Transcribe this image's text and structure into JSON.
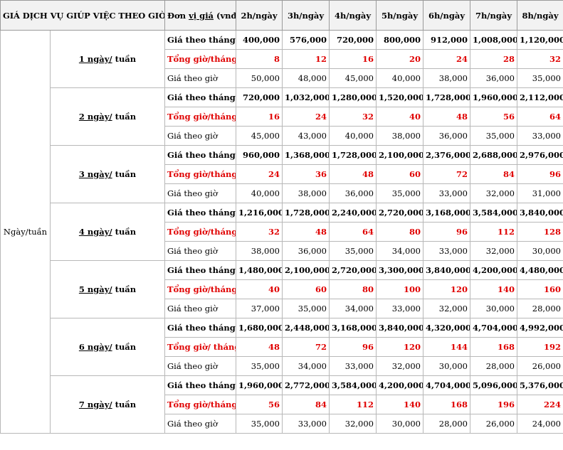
{
  "header": {
    "title": "GIÁ DỊCH VỤ GIÚP VIỆC THEO GIỜ",
    "unit_pre": "Đơn ",
    "unit_u": "vị giá",
    "unit_post": " (vnđ)",
    "cols": [
      "2h/ngày",
      "3h/ngày",
      "4h/ngày",
      "5h/ngày",
      "6h/ngày",
      "7h/ngày",
      "8h/ngày"
    ]
  },
  "group_label": "Ngày/tuần",
  "blocks": [
    {
      "days": "1 ngày/ tuần",
      "rows": [
        {
          "label": "Giá theo tháng",
          "values": [
            "400,000",
            "576,000",
            "720,000",
            "800,000",
            "912,000",
            "1,008,000",
            "1,120,000"
          ]
        },
        {
          "label": "Tổng giờ/tháng",
          "values": [
            "8",
            "12",
            "16",
            "20",
            "24",
            "28",
            "32"
          ]
        },
        {
          "label": "Giá theo giờ",
          "values": [
            "50,000",
            "48,000",
            "45,000",
            "40,000",
            "38,000",
            "36,000",
            "35,000"
          ]
        }
      ]
    },
    {
      "days": "2 ngày/ tuần",
      "rows": [
        {
          "label": "Giá theo tháng",
          "values": [
            "720,000",
            "1,032,000",
            "1,280,000",
            "1,520,000",
            "1,728,000",
            "1,960,000",
            "2,112,000"
          ]
        },
        {
          "label": "Tổng giờ/tháng",
          "values": [
            "16",
            "24",
            "32",
            "40",
            "48",
            "56",
            "64"
          ]
        },
        {
          "label": "Giá theo giờ",
          "values": [
            "45,000",
            "43,000",
            "40,000",
            "38,000",
            "36,000",
            "35,000",
            "33,000"
          ]
        }
      ]
    },
    {
      "days": "3 ngày/ tuần",
      "rows": [
        {
          "label": "Giá theo tháng",
          "values": [
            "960,000",
            "1,368,000",
            "1,728,000",
            "2,100,000",
            "2,376,000",
            "2,688,000",
            "2,976,000"
          ]
        },
        {
          "label": "Tổng giờ/tháng",
          "values": [
            "24",
            "36",
            "48",
            "60",
            "72",
            "84",
            "96"
          ]
        },
        {
          "label": "Giá theo giờ",
          "values": [
            "40,000",
            "38,000",
            "36,000",
            "35,000",
            "33,000",
            "32,000",
            "31,000"
          ]
        }
      ]
    },
    {
      "days": "4 ngày/ tuần",
      "rows": [
        {
          "label": "Giá theo tháng",
          "values": [
            "1,216,000",
            "1,728,000",
            "2,240,000",
            "2,720,000",
            "3,168,000",
            "3,584,000",
            "3,840,000"
          ]
        },
        {
          "label": "Tổng giờ/tháng",
          "values": [
            "32",
            "48",
            "64",
            "80",
            "96",
            "112",
            "128"
          ]
        },
        {
          "label": "Giá theo giờ",
          "values": [
            "38,000",
            "36,000",
            "35,000",
            "34,000",
            "33,000",
            "32,000",
            "30,000"
          ]
        }
      ]
    },
    {
      "days": "5 ngày/ tuần",
      "rows": [
        {
          "label": "Giá theo tháng",
          "values": [
            "1,480,000",
            "2,100,000",
            "2,720,000",
            "3,300,000",
            "3,840,000",
            "4,200,000",
            "4,480,000"
          ]
        },
        {
          "label": "Tổng giờ/tháng",
          "values": [
            "40",
            "60",
            "80",
            "100",
            "120",
            "140",
            "160"
          ]
        },
        {
          "label": "Giá theo giờ",
          "values": [
            "37,000",
            "35,000",
            "34,000",
            "33,000",
            "32,000",
            "30,000",
            "28,000"
          ]
        }
      ]
    },
    {
      "days": "6 ngày/ tuần",
      "rows": [
        {
          "label": "Giá theo tháng",
          "values": [
            "1,680,000",
            "2,448,000",
            "3,168,000",
            "3,840,000",
            "4,320,000",
            "4,704,000",
            "4,992,000"
          ]
        },
        {
          "label": "Tổng giờ/ tháng",
          "values": [
            "48",
            "72",
            "96",
            "120",
            "144",
            "168",
            "192"
          ]
        },
        {
          "label": "Giá theo giờ",
          "values": [
            "35,000",
            "34,000",
            "33,000",
            "32,000",
            "30,000",
            "28,000",
            "26,000"
          ]
        }
      ]
    },
    {
      "days": "7 ngày/ tuần",
      "rows": [
        {
          "label": "Giá theo tháng",
          "values": [
            "1,960,000",
            "2,772,000",
            "3,584,000",
            "4,200,000",
            "4,704,000",
            "5,096,000",
            "5,376,000"
          ]
        },
        {
          "label": "Tổng giờ/tháng",
          "values": [
            "56",
            "84",
            "112",
            "140",
            "168",
            "196",
            "224"
          ]
        },
        {
          "label": "Giá theo giờ",
          "values": [
            "35,000",
            "33,000",
            "32,000",
            "30,000",
            "28,000",
            "26,000",
            "24,000"
          ]
        }
      ]
    }
  ],
  "colors": {
    "highlight_red": "#e00000",
    "header_bg": "#f2f2f2",
    "grid": "#b8b8b8"
  }
}
